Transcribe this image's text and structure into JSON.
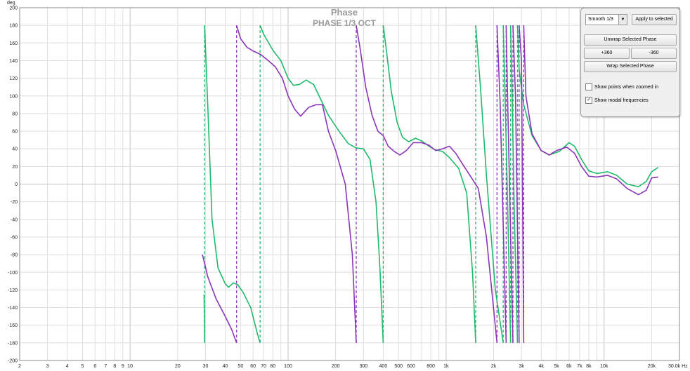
{
  "window": {
    "title": "Phase",
    "subtitle": "PHASE 1/3 OCT",
    "y_unit": "deg",
    "x_unit_end": "30.0k Hz"
  },
  "panel": {
    "smoothing_value": "Smooth 1/3",
    "apply_label": "Apply to selected",
    "unwrap_label": "Unwrap Selected Phase",
    "plus360_label": "+360",
    "minus360_label": "-360",
    "wrap_label": "Wrap Selected Phase",
    "show_points_label": "Show points when zoomed in",
    "show_points_checked": false,
    "show_modal_label": "Show modal frequencies",
    "show_modal_checked": true
  },
  "chart_data": {
    "type": "line",
    "title": "Phase",
    "subtitle": "PHASE 1/3 OCT",
    "ylabel": "deg",
    "xscale": "log",
    "xlim": [
      2,
      30000
    ],
    "ylim": [
      -200,
      200
    ],
    "grid": true,
    "y_ticks": [
      -200,
      -180,
      -160,
      -140,
      -120,
      -100,
      -80,
      -60,
      -40,
      -20,
      0,
      20,
      40,
      60,
      80,
      100,
      120,
      140,
      160,
      180,
      200
    ],
    "x_tick_labels": [
      {
        "f": 2,
        "label": "2"
      },
      {
        "f": 3,
        "label": "3"
      },
      {
        "f": 4,
        "label": "4"
      },
      {
        "f": 5,
        "label": "5"
      },
      {
        "f": 6,
        "label": "6"
      },
      {
        "f": 7,
        "label": "7"
      },
      {
        "f": 8,
        "label": "8"
      },
      {
        "f": 9,
        "label": "9"
      },
      {
        "f": 10,
        "label": "10"
      },
      {
        "f": 20,
        "label": "20"
      },
      {
        "f": 30,
        "label": "30"
      },
      {
        "f": 40,
        "label": "40"
      },
      {
        "f": 50,
        "label": "50"
      },
      {
        "f": 60,
        "label": "60"
      },
      {
        "f": 70,
        "label": "70"
      },
      {
        "f": 80,
        "label": "80"
      },
      {
        "f": 100,
        "label": "100"
      },
      {
        "f": 200,
        "label": "200"
      },
      {
        "f": 300,
        "label": "300"
      },
      {
        "f": 400,
        "label": "400"
      },
      {
        "f": 500,
        "label": "500"
      },
      {
        "f": 600,
        "label": "600"
      },
      {
        "f": 800,
        "label": "800"
      },
      {
        "f": 1000,
        "label": "1k"
      },
      {
        "f": 2000,
        "label": "2k"
      },
      {
        "f": 3000,
        "label": "3k"
      },
      {
        "f": 4000,
        "label": "4k"
      },
      {
        "f": 5000,
        "label": "5k"
      },
      {
        "f": 6000,
        "label": "6k"
      },
      {
        "f": 7000,
        "label": "7k"
      },
      {
        "f": 8000,
        "label": "8k"
      },
      {
        "f": 10000,
        "label": "10k"
      },
      {
        "f": 20000,
        "label": "20k"
      }
    ],
    "series": [
      {
        "color": "#1fb96c",
        "segments": [
          [
            [
              29.4,
              -125
            ],
            [
              29.6,
              -180
            ]
          ],
          [
            [
              29.6,
              180
            ],
            [
              31,
              90
            ],
            [
              33,
              -40
            ],
            [
              36,
              -95
            ],
            [
              40,
              -113
            ],
            [
              42,
              -117
            ],
            [
              45,
              -112
            ],
            [
              48,
              -114
            ],
            [
              52,
              -123
            ],
            [
              58,
              -140
            ],
            [
              64,
              -170
            ],
            [
              66.5,
              -180
            ]
          ],
          [
            [
              66.5,
              180
            ],
            [
              70,
              170
            ],
            [
              80,
              152
            ],
            [
              90,
              140
            ],
            [
              100,
              120
            ],
            [
              108,
              112
            ],
            [
              118,
              113
            ],
            [
              130,
              118
            ],
            [
              145,
              113
            ],
            [
              160,
              97
            ],
            [
              180,
              78
            ],
            [
              210,
              60
            ],
            [
              240,
              46
            ],
            [
              270,
              41
            ],
            [
              300,
              40
            ],
            [
              330,
              28
            ],
            [
              360,
              -20
            ],
            [
              380,
              -90
            ],
            [
              400,
              -180
            ]
          ],
          [
            [
              400,
              180
            ],
            [
              420,
              150
            ],
            [
              450,
              105
            ],
            [
              490,
              70
            ],
            [
              530,
              53
            ],
            [
              580,
              48
            ],
            [
              640,
              52
            ],
            [
              700,
              49
            ],
            [
              780,
              43
            ],
            [
              850,
              39
            ],
            [
              950,
              37
            ],
            [
              1050,
              30
            ],
            [
              1200,
              18
            ],
            [
              1350,
              -10
            ],
            [
              1470,
              -100
            ],
            [
              1540,
              -180
            ]
          ],
          [
            [
              1540,
              180
            ],
            [
              1570,
              160
            ],
            [
              1650,
              110
            ],
            [
              1800,
              10
            ],
            [
              2050,
              -120
            ],
            [
              2300,
              -180
            ]
          ],
          [
            [
              2300,
              180
            ],
            [
              2340,
              130
            ],
            [
              2450,
              -20
            ],
            [
              2560,
              -180
            ]
          ],
          [
            [
              2560,
              180
            ],
            [
              2600,
              130
            ],
            [
              2700,
              -30
            ],
            [
              2830,
              -180
            ]
          ],
          [
            [
              2830,
              180
            ],
            [
              2900,
              130
            ],
            [
              3100,
              90
            ],
            [
              3500,
              55
            ],
            [
              4000,
              38
            ],
            [
              4500,
              33
            ],
            [
              5200,
              37
            ],
            [
              6000,
              47
            ],
            [
              6500,
              43
            ],
            [
              7200,
              28
            ],
            [
              8000,
              15
            ],
            [
              9000,
              12
            ],
            [
              10500,
              14
            ],
            [
              12000,
              10
            ],
            [
              14000,
              0
            ],
            [
              16500,
              -3
            ],
            [
              18500,
              3
            ],
            [
              20000,
              14
            ],
            [
              22000,
              19
            ]
          ]
        ]
      },
      {
        "color": "#8b35b8",
        "segments": [
          [
            [
              28.7,
              -80
            ],
            [
              31,
              -105
            ],
            [
              35,
              -130
            ],
            [
              40,
              -150
            ],
            [
              44,
              -165
            ],
            [
              47.2,
              -180
            ]
          ],
          [
            [
              47.2,
              180
            ],
            [
              50,
              165
            ],
            [
              55,
              155
            ],
            [
              60,
              151
            ],
            [
              67,
              147
            ],
            [
              75,
              140
            ],
            [
              83,
              133
            ],
            [
              92,
              120
            ],
            [
              100,
              100
            ],
            [
              110,
              85
            ],
            [
              120,
              77
            ],
            [
              135,
              87
            ],
            [
              150,
              90
            ],
            [
              165,
              90
            ],
            [
              180,
              60
            ],
            [
              200,
              38
            ],
            [
              230,
              0
            ],
            [
              255,
              -80
            ],
            [
              270,
              -180
            ]
          ],
          [
            [
              270,
              180
            ],
            [
              285,
              155
            ],
            [
              310,
              110
            ],
            [
              340,
              78
            ],
            [
              370,
              60
            ],
            [
              400,
              55
            ],
            [
              430,
              43
            ],
            [
              470,
              37
            ],
            [
              510,
              33
            ],
            [
              560,
              38
            ],
            [
              620,
              47
            ],
            [
              700,
              47
            ],
            [
              780,
              44
            ],
            [
              860,
              38
            ],
            [
              950,
              40
            ],
            [
              1050,
              43
            ],
            [
              1150,
              35
            ],
            [
              1300,
              20
            ],
            [
              1450,
              7
            ],
            [
              1600,
              -5
            ],
            [
              1800,
              -60
            ],
            [
              2100,
              -180
            ]
          ],
          [
            [
              2100,
              180
            ],
            [
              2200,
              90
            ],
            [
              2400,
              -180
            ]
          ],
          [
            [
              2400,
              180
            ],
            [
              2450,
              100
            ],
            [
              2650,
              -180
            ]
          ],
          [
            [
              2650,
              180
            ],
            [
              2750,
              100
            ],
            [
              2900,
              -180
            ]
          ],
          [
            [
              2900,
              180
            ],
            [
              3000,
              140
            ],
            [
              3100,
              -180
            ]
          ],
          [
            [
              3100,
              180
            ],
            [
              3200,
              100
            ],
            [
              3500,
              57
            ],
            [
              4000,
              38
            ],
            [
              4500,
              33
            ],
            [
              5000,
              38
            ],
            [
              5800,
              42
            ],
            [
              6500,
              35
            ],
            [
              7200,
              20
            ],
            [
              8000,
              9
            ],
            [
              9000,
              8
            ],
            [
              10500,
              10
            ],
            [
              12000,
              6
            ],
            [
              14000,
              -5
            ],
            [
              16500,
              -12
            ],
            [
              18500,
              -7
            ],
            [
              20000,
              7
            ],
            [
              22000,
              8
            ]
          ]
        ]
      }
    ],
    "modal_markers": [
      {
        "f": 29.6,
        "color": "#1fb96c"
      },
      {
        "f": 47.2,
        "color": "#8b35b8"
      },
      {
        "f": 66.5,
        "color": "#1fb96c"
      },
      {
        "f": 270,
        "color": "#8b35b8"
      },
      {
        "f": 400,
        "color": "#1fb96c"
      },
      {
        "f": 1540,
        "color": "#1fb96c"
      },
      {
        "f": 2100,
        "color": "#8b35b8"
      },
      {
        "f": 2300,
        "color": "#1fb96c"
      },
      {
        "f": 2400,
        "color": "#8b35b8"
      },
      {
        "f": 2560,
        "color": "#1fb96c"
      },
      {
        "f": 2650,
        "color": "#8b35b8"
      },
      {
        "f": 2830,
        "color": "#1fb96c"
      },
      {
        "f": 2900,
        "color": "#8b35b8"
      },
      {
        "f": 3100,
        "color": "#8b35b8"
      }
    ]
  }
}
